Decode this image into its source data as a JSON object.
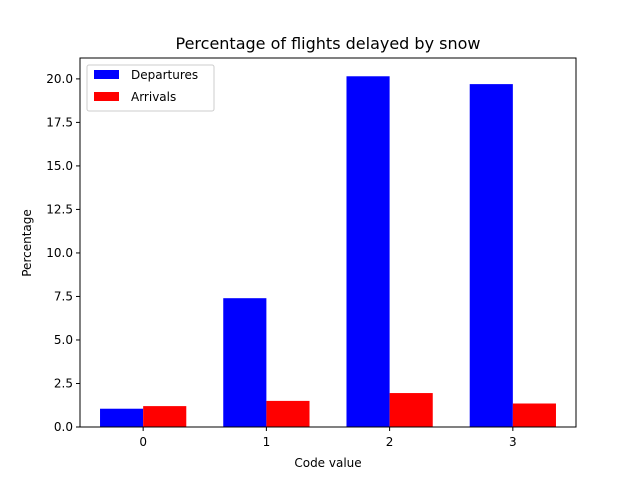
{
  "chart_data": {
    "type": "bar",
    "title": "Percentage of flights delayed by snow",
    "xlabel": "Code value",
    "ylabel": "Percentage",
    "categories": [
      "0",
      "1",
      "2",
      "3"
    ],
    "series": [
      {
        "name": "Departures",
        "color": "#0000ff",
        "values": [
          1.05,
          7.4,
          20.15,
          19.7
        ]
      },
      {
        "name": "Arrivals",
        "color": "#ff0000",
        "values": [
          1.2,
          1.5,
          1.95,
          1.35
        ]
      }
    ],
    "ylim": [
      0,
      21.2
    ],
    "yticks": [
      "0.0",
      "2.5",
      "5.0",
      "7.5",
      "10.0",
      "12.5",
      "15.0",
      "17.5",
      "20.0"
    ],
    "legend_position": "top-left",
    "grid": false
  }
}
